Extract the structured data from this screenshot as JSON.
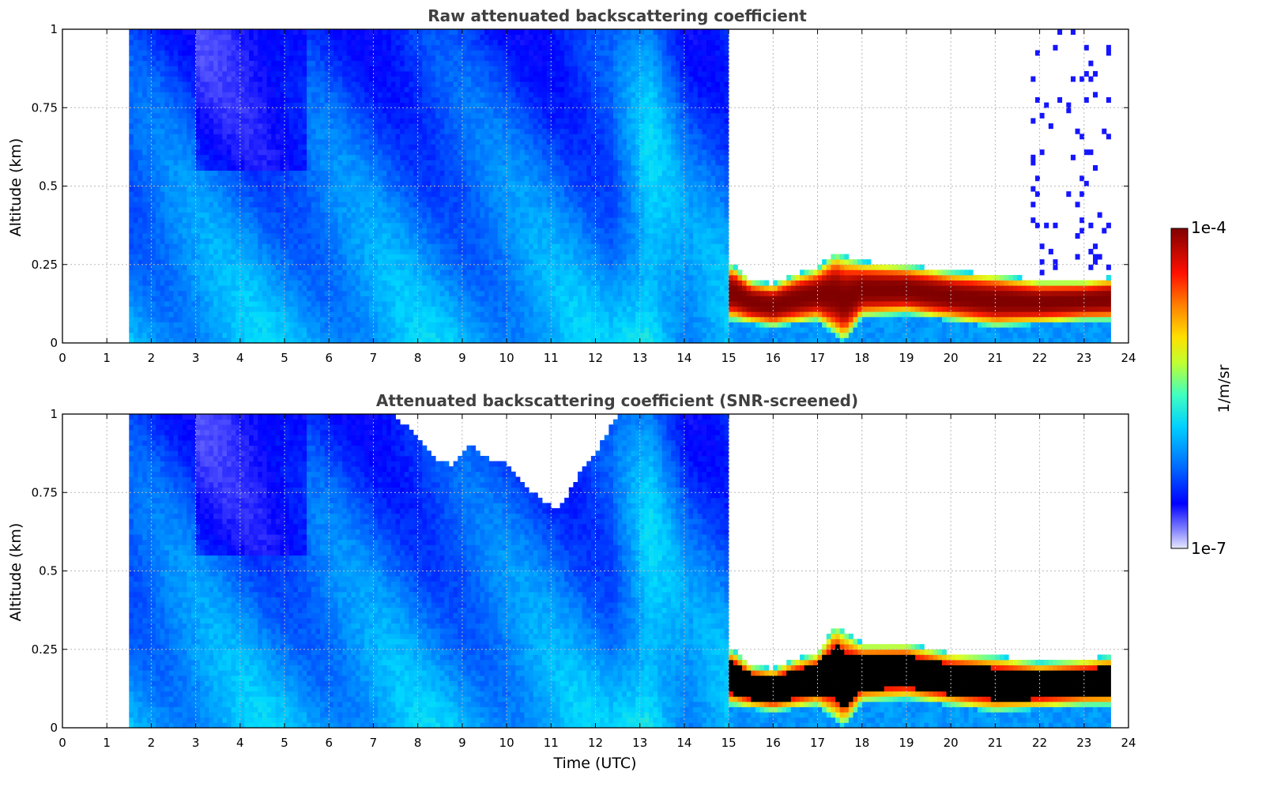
{
  "chart_data": [
    {
      "type": "heatmap",
      "title": "Raw attenuated backscattering coefficient",
      "xlabel": "",
      "ylabel": "Altitude (km)",
      "xlim": [
        0,
        24
      ],
      "ylim": [
        0,
        1
      ],
      "x_ticks": [
        "0",
        "1",
        "2",
        "3",
        "4",
        "5",
        "6",
        "7",
        "8",
        "9",
        "10",
        "11",
        "12",
        "13",
        "14",
        "15",
        "16",
        "17",
        "18",
        "19",
        "20",
        "21",
        "22",
        "23",
        "24"
      ],
      "y_ticks": [
        "0",
        "0.25",
        "0.5",
        "0.75",
        "1"
      ],
      "grid": true,
      "data_start_time": 1.55,
      "data_end_time": 23.6,
      "cloud_onset_time": 15.05,
      "cloud_layer_base_km": [
        [
          15.1,
          0.07
        ],
        [
          16,
          0.05
        ],
        [
          17,
          0.07
        ],
        [
          17.6,
          0.0
        ],
        [
          18,
          0.08
        ],
        [
          19,
          0.09
        ],
        [
          20,
          0.07
        ],
        [
          21,
          0.05
        ],
        [
          22,
          0.06
        ],
        [
          23,
          0.07
        ],
        [
          23.6,
          0.07
        ]
      ],
      "cloud_layer_top_km": [
        [
          15.1,
          0.25
        ],
        [
          15.5,
          0.2
        ],
        [
          16,
          0.19
        ],
        [
          16.5,
          0.22
        ],
        [
          17,
          0.24
        ],
        [
          17.4,
          0.29
        ],
        [
          18,
          0.26
        ],
        [
          19,
          0.25
        ],
        [
          20,
          0.23
        ],
        [
          21,
          0.22
        ],
        [
          22,
          0.2
        ],
        [
          23,
          0.2
        ],
        [
          23.6,
          0.21
        ]
      ]
    },
    {
      "type": "heatmap",
      "title": "Attenuated backscattering coefficient (SNR-screened)",
      "xlabel": "Time (UTC)",
      "ylabel": "Altitude (km)",
      "xlim": [
        0,
        24
      ],
      "ylim": [
        0,
        1
      ],
      "x_ticks": [
        "0",
        "1",
        "2",
        "3",
        "4",
        "5",
        "6",
        "7",
        "8",
        "9",
        "10",
        "11",
        "12",
        "13",
        "14",
        "15",
        "16",
        "17",
        "18",
        "19",
        "20",
        "21",
        "22",
        "23",
        "24"
      ],
      "y_ticks": [
        "0",
        "0.25",
        "0.5",
        "0.75",
        "1"
      ],
      "grid": true,
      "data_start_time": 1.55,
      "data_end_time": 23.6,
      "cloud_onset_time": 15.05,
      "screened_gap_top_km": [
        [
          7.4,
          1.0
        ],
        [
          7.6,
          0.98
        ],
        [
          8,
          0.93
        ],
        [
          8.4,
          0.85
        ],
        [
          8.8,
          0.84
        ],
        [
          9.2,
          0.9
        ],
        [
          9.6,
          0.86
        ],
        [
          10,
          0.84
        ],
        [
          10.4,
          0.78
        ],
        [
          10.8,
          0.72
        ],
        [
          11.2,
          0.7
        ],
        [
          11.6,
          0.8
        ],
        [
          12,
          0.88
        ],
        [
          12.4,
          0.97
        ],
        [
          12.6,
          1.0
        ]
      ],
      "cloud_layer_base_km": [
        [
          15.1,
          0.07
        ],
        [
          16,
          0.05
        ],
        [
          17,
          0.07
        ],
        [
          17.6,
          0.0
        ],
        [
          18,
          0.08
        ],
        [
          19,
          0.09
        ],
        [
          20,
          0.07
        ],
        [
          21,
          0.05
        ],
        [
          22,
          0.06
        ],
        [
          23,
          0.07
        ],
        [
          23.6,
          0.07
        ]
      ],
      "cloud_layer_top_km": [
        [
          15.1,
          0.25
        ],
        [
          15.5,
          0.2
        ],
        [
          16,
          0.19
        ],
        [
          16.5,
          0.22
        ],
        [
          17,
          0.24
        ],
        [
          17.4,
          0.33
        ],
        [
          18,
          0.27
        ],
        [
          19,
          0.27
        ],
        [
          20,
          0.24
        ],
        [
          21,
          0.23
        ],
        [
          22,
          0.21
        ],
        [
          23,
          0.22
        ],
        [
          23.6,
          0.23
        ]
      ]
    }
  ],
  "colorbar": {
    "label": "1/m/sr",
    "max_label": "1e-4",
    "min_label": "1e-7",
    "scale": "log",
    "range": [
      1e-07,
      0.0001
    ],
    "colormap": [
      "#e8e8ff",
      "#6a6aff",
      "#0000ff",
      "#0070ff",
      "#00d8ff",
      "#60ffa0",
      "#e0ff20",
      "#ffb000",
      "#ff2000",
      "#800000"
    ]
  },
  "colors": {
    "background": "#ffffff",
    "grid": "#b8b8b8",
    "title": "#404040",
    "screened_saturation": "#000000"
  }
}
